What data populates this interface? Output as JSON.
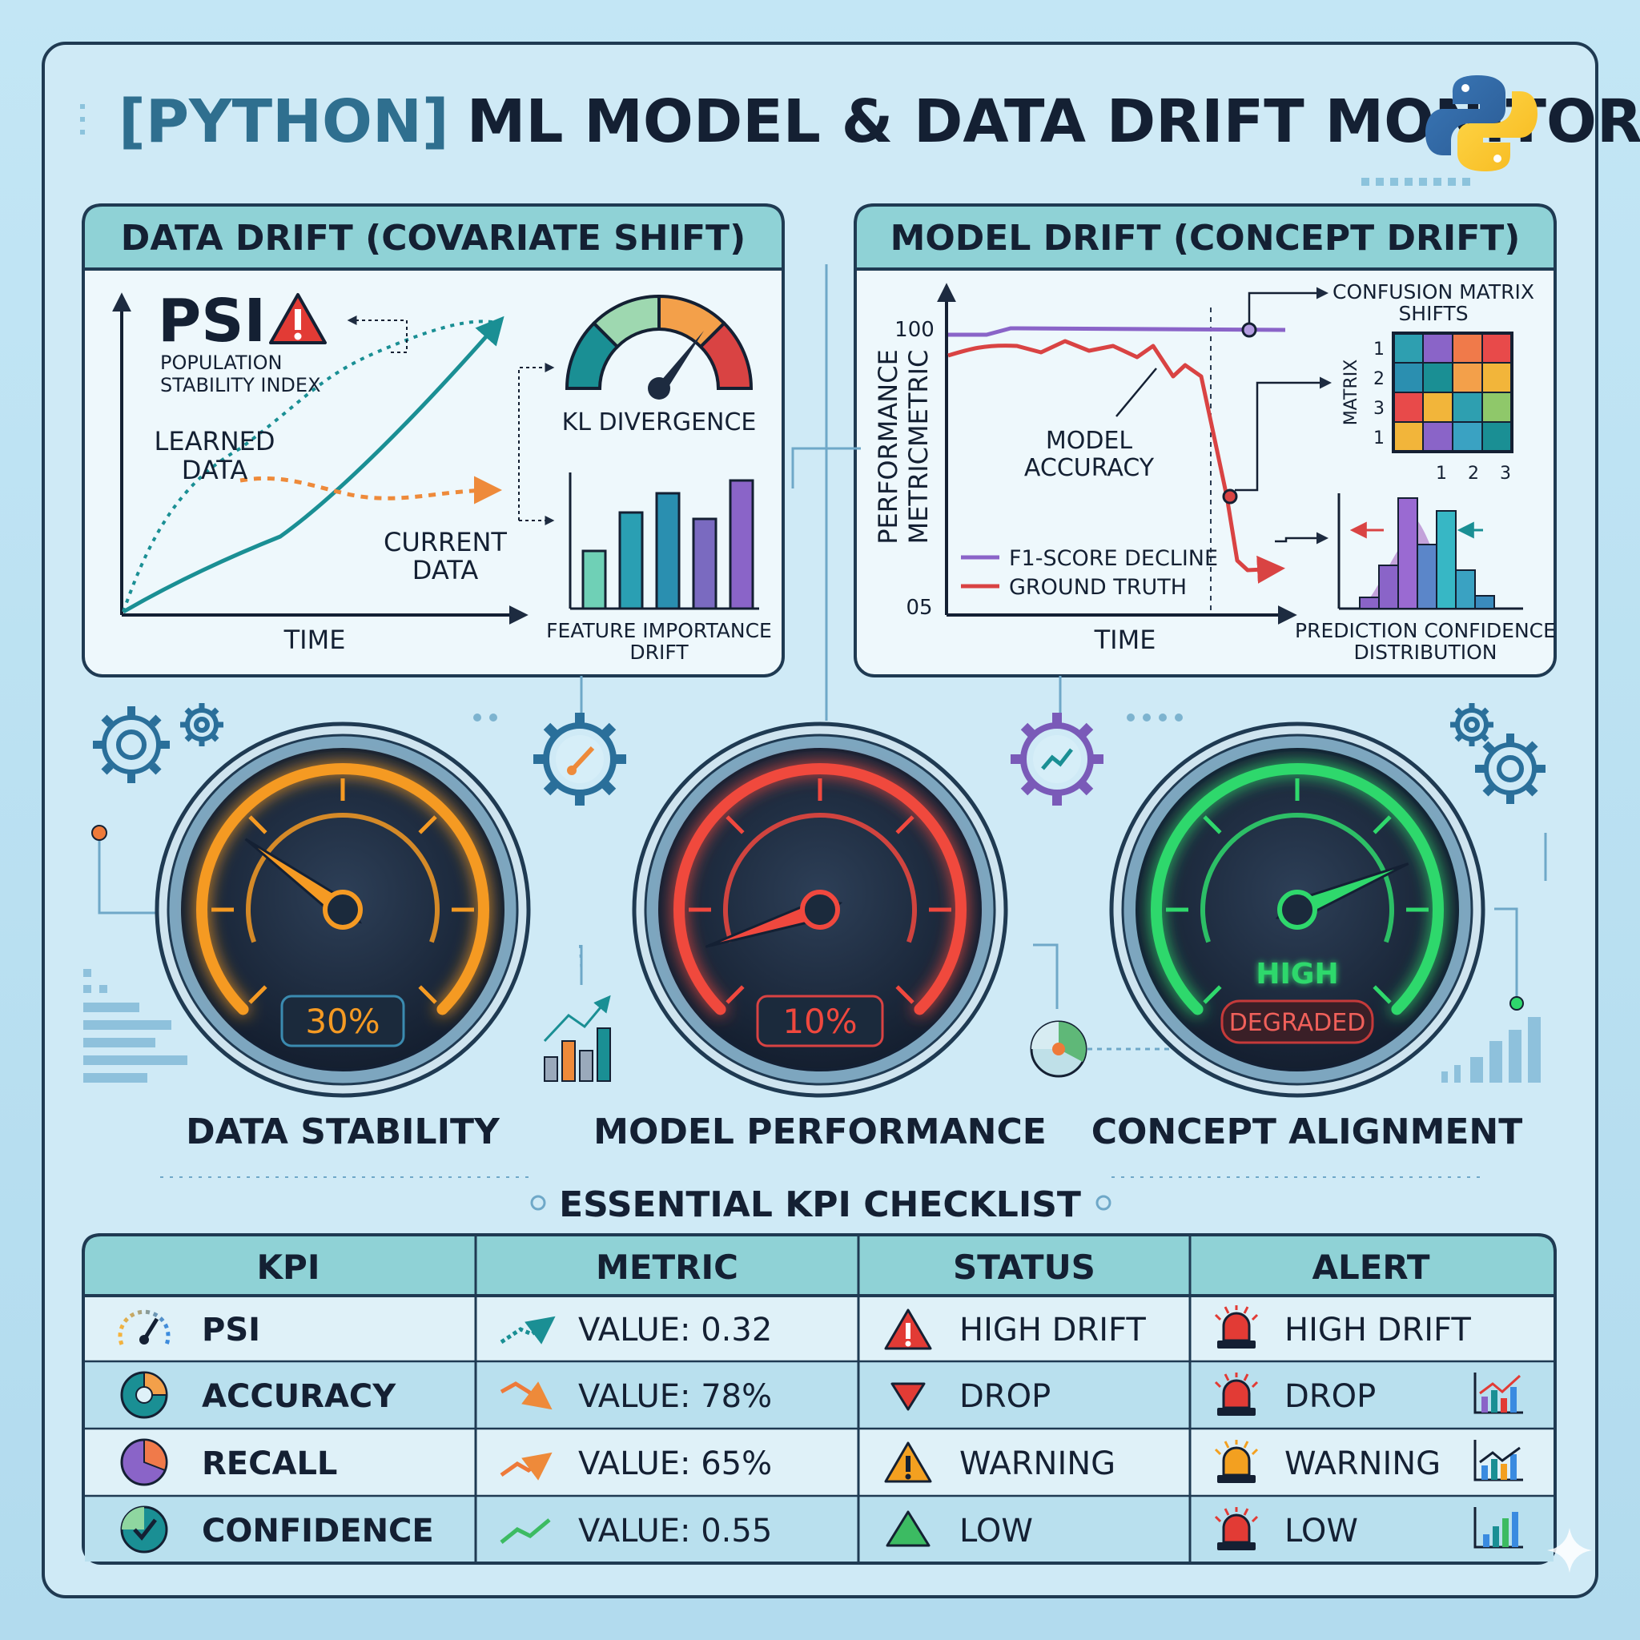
{
  "title": {
    "prefix": "[PYTHON]",
    "main": "ML MODEL & DATA DRIFT MONITORING"
  },
  "data_drift_panel": {
    "header": "DATA DRIFT (COVARIATE SHIFT)",
    "psi_label": "PSI",
    "psi_line1": "POPULATION",
    "psi_line2": "STABILITY INDEX",
    "learned_line1": "LEARNED",
    "learned_line2": "DATA",
    "current_line1": "CURRENT",
    "current_line2": "DATA",
    "x_label": "TIME",
    "kl_label": "KL DIVERGENCE",
    "feature_line1": "FEATURE IMPORTANCE",
    "feature_line2": "DRIFT",
    "feature_bars": [
      0.45,
      0.75,
      0.9,
      0.7,
      1.0
    ]
  },
  "model_drift_panel": {
    "header": "MODEL DRIFT (CONCEPT DRIFT)",
    "y_label_line1": "PERFORMANCE",
    "y_label_line2": "METRICMETRIC",
    "y_tick_top": "100",
    "y_tick_bottom": "05",
    "x_label": "TIME",
    "accuracy_line1": "MODEL",
    "accuracy_line2": "ACCURACY",
    "legend_f1": "F1-SCORE DECLINE",
    "legend_truth": "GROUND TRUTH",
    "confusion_line1": "CONFUSION MATRIX",
    "confusion_line2": "SHIFTS",
    "matrix_axis_label": "MATRIX",
    "matrix_row_labels": [
      "1",
      "2",
      "3",
      "1"
    ],
    "matrix_col_labels": [
      "1",
      "2",
      "3"
    ],
    "confidence_line1": "PREDICTION CONFIDENCE",
    "confidence_line2": "DISTRIBUTION"
  },
  "gauges": [
    {
      "label": "DATA STABILITY",
      "value_text": "30%",
      "level": 0.3,
      "color": "#f59a23"
    },
    {
      "label": "MODEL PERFORMANCE",
      "value_text": "10%",
      "level": 0.1,
      "color": "#f0483e"
    },
    {
      "label": "CONCEPT ALIGNMENT",
      "status_text": "HIGH",
      "badge_text": "DEGRADED",
      "level": 0.75,
      "color": "#2fd86c"
    }
  ],
  "checklist": {
    "title": "ESSENTIAL KPI CHECKLIST",
    "headers": [
      "KPI",
      "METRIC",
      "STATUS",
      "ALERT"
    ],
    "rows": [
      {
        "kpi": "PSI",
        "metric": "VALUE: 0.32",
        "status": "HIGH DRIFT",
        "alert": "HIGH DRIFT"
      },
      {
        "kpi": "ACCURACY",
        "metric": "VALUE: 78%",
        "status": "DROP",
        "alert": "DROP"
      },
      {
        "kpi": "RECALL",
        "metric": "VALUE: 65%",
        "status": "WARNING",
        "alert": "WARNING"
      },
      {
        "kpi": "CONFIDENCE",
        "metric": "VALUE: 0.55",
        "status": "LOW",
        "alert": "LOW"
      }
    ]
  },
  "colors": {
    "accent_teal": "#1a8f94",
    "header_band": "#8fd2d6",
    "dark_navy": "#142033",
    "alert_red": "#e23b35",
    "warning_orange": "#f3a020",
    "ok_green": "#3cbb62",
    "purple": "#8a64c8"
  }
}
